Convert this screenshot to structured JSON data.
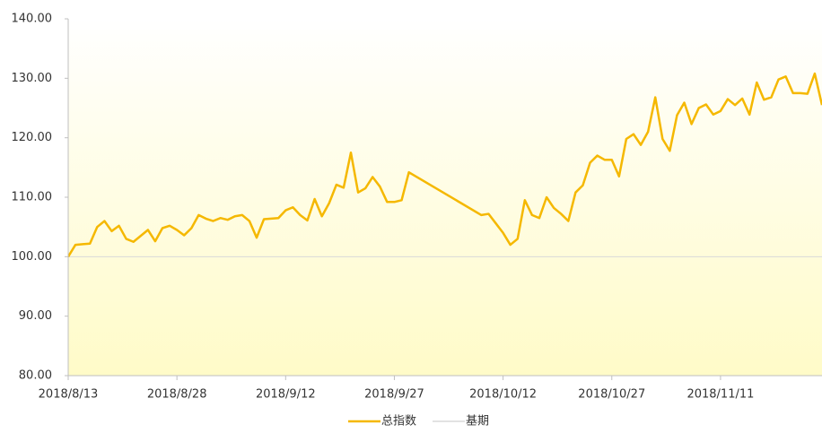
{
  "chart_data": {
    "type": "line",
    "xlim": [
      "2018-08-13",
      "2018-11-25"
    ],
    "xticks": [
      {
        "value": "2018-08-13",
        "label": "2018/8/13"
      },
      {
        "value": "2018-08-28",
        "label": "2018/8/28"
      },
      {
        "value": "2018-09-12",
        "label": "2018/9/12"
      },
      {
        "value": "2018-09-27",
        "label": "2018/9/27"
      },
      {
        "value": "2018-10-12",
        "label": "2018/10/12"
      },
      {
        "value": "2018-10-27",
        "label": "2018/10/27"
      },
      {
        "value": "2018-11-11",
        "label": "2018/11/11"
      }
    ],
    "ylim": [
      80,
      140
    ],
    "yticks": [
      {
        "value": 80,
        "label": "80.00"
      },
      {
        "value": 90,
        "label": "90.00"
      },
      {
        "value": 100,
        "label": "100.00"
      },
      {
        "value": 110,
        "label": "110.00"
      },
      {
        "value": 120,
        "label": "120.00"
      },
      {
        "value": 130,
        "label": "130.00"
      },
      {
        "value": 140,
        "label": "140.00"
      }
    ],
    "grid": false,
    "legend": "bottom",
    "series": [
      {
        "name": "总指数",
        "color": "#f5b800",
        "x": [
          "2018-08-13",
          "2018-08-14",
          "2018-08-15",
          "2018-08-16",
          "2018-08-17",
          "2018-08-18",
          "2018-08-19",
          "2018-08-20",
          "2018-08-21",
          "2018-08-22",
          "2018-08-23",
          "2018-08-24",
          "2018-08-25",
          "2018-08-26",
          "2018-08-27",
          "2018-08-28",
          "2018-08-29",
          "2018-08-30",
          "2018-08-31",
          "2018-09-01",
          "2018-09-02",
          "2018-09-03",
          "2018-09-04",
          "2018-09-05",
          "2018-09-06",
          "2018-09-07",
          "2018-09-08",
          "2018-09-09",
          "2018-09-10",
          "2018-09-11",
          "2018-09-12",
          "2018-09-13",
          "2018-09-14",
          "2018-09-15",
          "2018-09-16",
          "2018-09-17",
          "2018-09-18",
          "2018-09-19",
          "2018-09-20",
          "2018-09-21",
          "2018-09-22",
          "2018-09-23",
          "2018-09-24",
          "2018-09-25",
          "2018-09-26",
          "2018-09-27",
          "2018-09-28",
          "2018-09-29",
          "2018-10-09",
          "2018-10-10",
          "2018-10-11",
          "2018-10-12",
          "2018-10-13",
          "2018-10-14",
          "2018-10-15",
          "2018-10-16",
          "2018-10-17",
          "2018-10-18",
          "2018-10-19",
          "2018-10-20",
          "2018-10-21",
          "2018-10-22",
          "2018-10-23",
          "2018-10-24",
          "2018-10-25",
          "2018-10-26",
          "2018-10-27",
          "2018-10-28",
          "2018-10-29",
          "2018-10-30",
          "2018-10-31",
          "2018-11-01",
          "2018-11-02",
          "2018-11-03",
          "2018-11-04",
          "2018-11-05",
          "2018-11-06",
          "2018-11-07",
          "2018-11-08",
          "2018-11-09",
          "2018-11-10",
          "2018-11-11",
          "2018-11-12",
          "2018-11-13",
          "2018-11-14",
          "2018-11-15",
          "2018-11-16",
          "2018-11-17",
          "2018-11-18",
          "2018-11-19",
          "2018-11-20",
          "2018-11-21",
          "2018-11-22",
          "2018-11-23",
          "2018-11-24",
          "2018-11-25"
        ],
        "values": [
          100,
          102,
          102.1,
          102.2,
          105,
          106,
          104.3,
          105.2,
          103,
          102.5,
          103.5,
          104.5,
          102.6,
          104.8,
          105.2,
          104.5,
          103.6,
          104.8,
          107,
          106.4,
          106,
          106.5,
          106.2,
          106.8,
          107,
          106,
          103.2,
          106.3,
          106.4,
          106.5,
          107.8,
          108.3,
          107,
          106.1,
          109.7,
          106.8,
          109,
          112.1,
          111.6,
          117.5,
          110.8,
          111.5,
          113.4,
          111.8,
          109.2,
          109.2,
          109.5,
          114.2,
          107,
          107.2,
          105.6,
          104,
          102,
          103,
          109.5,
          107,
          106.5,
          110,
          108.2,
          107.2,
          106,
          110.8,
          112,
          115.8,
          117,
          116.3,
          116.3,
          113.5,
          119.8,
          120.6,
          118.8,
          121,
          126.8,
          119.8,
          117.8,
          123.8,
          125.9,
          122.3,
          125,
          125.6,
          123.9,
          124.5,
          126.5,
          125.5,
          126.6,
          123.9,
          129.3,
          126.4,
          126.8,
          129.8,
          130.3,
          127.5,
          127.5,
          127.4,
          130.8,
          125.5
        ]
      },
      {
        "name": "基期",
        "color": "#d9d9d9",
        "x": [
          "2018-08-13",
          "2018-11-25"
        ],
        "values": [
          100,
          100
        ]
      }
    ]
  }
}
